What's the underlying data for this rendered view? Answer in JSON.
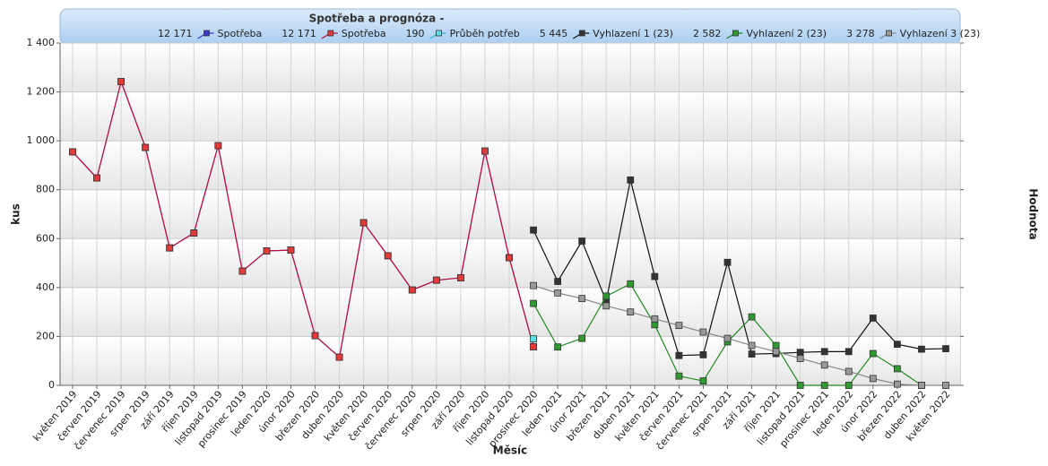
{
  "chart_data": {
    "type": "line",
    "title": "Spotřeba a prognóza -",
    "x_label": "Měsíc",
    "y_label": "kus",
    "y2_label": "Hodnota",
    "categories": [
      "květen 2019",
      "červen 2019",
      "červenec 2019",
      "srpen 2019",
      "září 2019",
      "říjen 2019",
      "listopad 2019",
      "prosinec 2019",
      "leden 2020",
      "únor 2020",
      "březen 2020",
      "duben 2020",
      "květen 2020",
      "červen 2020",
      "červenec 2020",
      "srpen 2020",
      "září 2020",
      "říjen 2020",
      "listopad 2020",
      "prosinec 2020",
      "leden 2021",
      "únor 2021",
      "březen 2021",
      "duben 2021",
      "květen 2021",
      "červen 2021",
      "červenec 2021",
      "srpen 2021",
      "září 2021",
      "říjen 2021",
      "listopad 2021",
      "prosinec 2021",
      "leden 2022",
      "únor 2022",
      "březen 2022",
      "duben 2022",
      "květen 2022"
    ],
    "ylim": [
      0,
      1400
    ],
    "yticks": [
      0,
      200,
      400,
      600,
      800,
      {
        "value": 1000,
        "label": "1 000"
      },
      {
        "value": 1200,
        "label": "1 200"
      },
      {
        "value": 1400,
        "label": "1 400"
      }
    ],
    "grid": true,
    "series": [
      {
        "name": "Spotřeba",
        "total": "12 171",
        "color": "#3a3ad0",
        "line_color": "#3a3ad0",
        "values": [
          955,
          848,
          1242,
          973,
          562,
          623,
          980,
          467,
          550,
          553,
          203,
          115,
          665,
          530,
          390,
          430,
          440,
          958,
          522,
          158,
          null,
          null,
          null,
          null,
          null,
          null,
          null,
          null,
          null,
          null,
          null,
          null,
          null,
          null,
          null,
          null,
          null
        ]
      },
      {
        "name": "Spotřeba",
        "total": "12 171",
        "color": "#e23a3a",
        "line_color": "#c0103a",
        "values": [
          955,
          848,
          1242,
          973,
          562,
          623,
          980,
          467,
          550,
          553,
          203,
          115,
          665,
          530,
          390,
          430,
          440,
          958,
          522,
          158,
          null,
          null,
          null,
          null,
          null,
          null,
          null,
          null,
          null,
          null,
          null,
          null,
          null,
          null,
          null,
          null,
          null
        ]
      },
      {
        "name": "Průběh potřeb",
        "total": "190",
        "color": "#5fe0e8",
        "line_color": "#20c0d0",
        "values": [
          null,
          null,
          null,
          null,
          null,
          null,
          null,
          null,
          null,
          null,
          null,
          null,
          null,
          null,
          null,
          null,
          null,
          null,
          null,
          190,
          null,
          null,
          null,
          null,
          null,
          null,
          null,
          null,
          null,
          null,
          null,
          null,
          null,
          null,
          null,
          null,
          null
        ]
      },
      {
        "name": "Vyhlazení 1 (23)",
        "total": "5 445",
        "color": "#333333",
        "line_color": "#111111",
        "values": [
          null,
          null,
          null,
          null,
          null,
          null,
          null,
          null,
          null,
          null,
          null,
          null,
          null,
          null,
          null,
          null,
          null,
          null,
          null,
          635,
          425,
          590,
          345,
          840,
          445,
          122,
          125,
          503,
          128,
          130,
          135,
          138,
          138,
          275,
          168,
          148,
          150
        ]
      },
      {
        "name": "Vyhlazení 2 (23)",
        "total": "2 582",
        "color": "#2f9a2f",
        "line_color": "#1f8a1f",
        "values": [
          null,
          null,
          null,
          null,
          null,
          null,
          null,
          null,
          null,
          null,
          null,
          null,
          null,
          null,
          null,
          null,
          null,
          null,
          null,
          335,
          157,
          192,
          365,
          415,
          248,
          38,
          18,
          178,
          280,
          163,
          0,
          0,
          0,
          130,
          68,
          0,
          null
        ]
      },
      {
        "name": "Vyhlazení 3 (23)",
        "total": "3 278",
        "color": "#999999",
        "line_color": "#888888",
        "values": [
          null,
          null,
          null,
          null,
          null,
          null,
          null,
          null,
          null,
          null,
          null,
          null,
          null,
          null,
          null,
          null,
          null,
          null,
          null,
          408,
          378,
          355,
          325,
          300,
          272,
          245,
          218,
          192,
          163,
          138,
          110,
          83,
          57,
          28,
          5,
          0,
          0
        ]
      }
    ]
  }
}
